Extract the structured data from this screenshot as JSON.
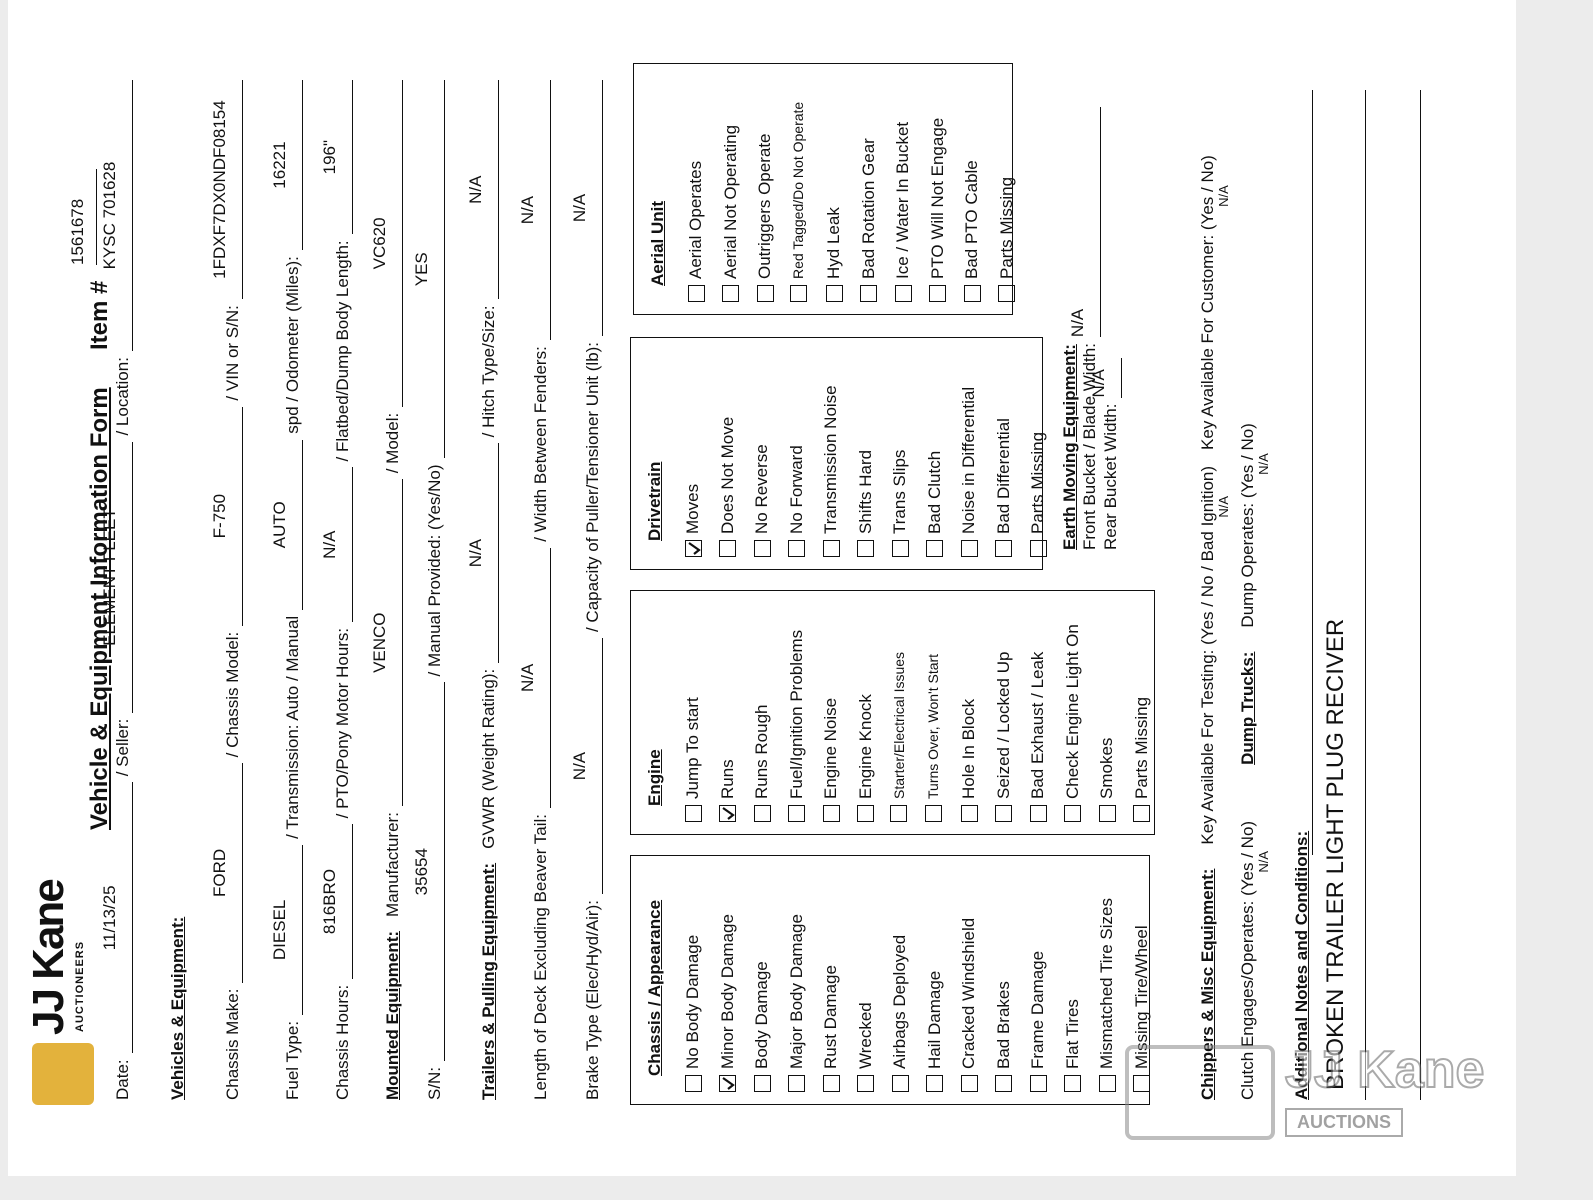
{
  "logo": {
    "name": "JJ Kane",
    "tagline": "AUCTIONEERS"
  },
  "header": {
    "title": "Vehicle & Equipment Information Form",
    "item_label": "Item #",
    "item_value": "1561678"
  },
  "rows": [
    [
      {
        "label": "Date:",
        "value": "11/13/25"
      },
      {
        "label": "/ Seller:",
        "value": "ELEMENT FLEET"
      },
      {
        "label": "/ Location:",
        "value": "KYSC 701628"
      }
    ],
    [
      {
        "heading": "Vehicles & Equipment:"
      }
    ],
    [
      {
        "label": "Chassis Make:",
        "value": "FORD"
      },
      {
        "label": "/ Chassis Model:",
        "value": "F-750"
      },
      {
        "label": "/ VIN or S/N:",
        "value": "1FDXF7DX0NDF08154"
      }
    ],
    [
      {
        "label": "Fuel Type:",
        "value": "DIESEL"
      },
      {
        "label": "/ Transmission: Auto / Manual",
        "value": "AUTO"
      },
      {
        "label": "spd / Odometer (Miles):",
        "value": "16221"
      }
    ],
    [
      {
        "label": "Chassis Hours:",
        "value": "816BRO"
      },
      {
        "label": "/ PTO/Pony Motor Hours:",
        "value": "N/A"
      },
      {
        "label": "/ Flatbed/Dump Body Length:",
        "value": "196\""
      }
    ],
    [
      {
        "heading": "Mounted Equipment:"
      },
      {
        "label": "Manufacturer:",
        "value": "VENCO"
      },
      {
        "label": "/ Model:",
        "value": "VC620"
      }
    ],
    [
      {
        "label": "S/N:",
        "value": "35654"
      },
      {
        "label": "/ Manual Provided: (Yes/No)",
        "value": "YES"
      }
    ],
    [
      {
        "heading": "Trailers & Pulling Equipment:"
      },
      {
        "label": "GVWR (Weight Rating):",
        "value": "N/A"
      },
      {
        "label": "/ Hitch Type/Size:",
        "value": "N/A"
      }
    ],
    [
      {
        "label": "Length of Deck Excluding Beaver Tail:",
        "value": "N/A"
      },
      {
        "label": "/ Width Between Fenders:",
        "value": "N/A"
      }
    ],
    [
      {
        "label": "Brake Type (Elec/Hyd/Air):",
        "value": "N/A"
      },
      {
        "label": "/ Capacity of Puller/Tensioner Unit (lb):",
        "value": "N/A"
      }
    ]
  ],
  "checklists": [
    {
      "title": "Chassis / Appearance",
      "items": [
        {
          "label": "No Body Damage",
          "checked": false
        },
        {
          "label": "Minor Body Damage",
          "checked": true
        },
        {
          "label": "Body Damage",
          "checked": false
        },
        {
          "label": "Major Body Damage",
          "checked": false
        },
        {
          "label": "Rust Damage",
          "checked": false
        },
        {
          "label": "Wrecked",
          "checked": false
        },
        {
          "label": "Airbags Deployed",
          "checked": false
        },
        {
          "label": "Hail Damage",
          "checked": false
        },
        {
          "label": "Cracked Windshield",
          "checked": false
        },
        {
          "label": "Bad Brakes",
          "checked": false
        },
        {
          "label": "Frame Damage",
          "checked": false
        },
        {
          "label": "Flat Tires",
          "checked": false
        },
        {
          "label": "Mismatched Tire Sizes",
          "checked": false
        },
        {
          "label": "Missing Tire/Wheel",
          "checked": false
        }
      ]
    },
    {
      "title": "Engine",
      "items": [
        {
          "label": "Jump To start",
          "checked": false
        },
        {
          "label": "Runs",
          "checked": true
        },
        {
          "label": "Runs Rough",
          "checked": false
        },
        {
          "label": "Fuel/Ignition Problems",
          "checked": false
        },
        {
          "label": "Engine Noise",
          "checked": false
        },
        {
          "label": "Engine Knock",
          "checked": false
        },
        {
          "label": "Starter/Electrical Issues",
          "checked": false
        },
        {
          "label": "Turns Over, Won't Start",
          "checked": false
        },
        {
          "label": "Hole In Block",
          "checked": false
        },
        {
          "label": "Seized / Locked Up",
          "checked": false
        },
        {
          "label": "Bad Exhaust / Leak",
          "checked": false
        },
        {
          "label": "Check Engine Light On",
          "checked": false
        },
        {
          "label": "Smokes",
          "checked": false
        },
        {
          "label": "Parts Missing",
          "checked": false
        }
      ]
    },
    {
      "title": "Drivetrain",
      "items": [
        {
          "label": "Moves",
          "checked": true
        },
        {
          "label": "Does Not Move",
          "checked": false
        },
        {
          "label": "No Reverse",
          "checked": false
        },
        {
          "label": "No Forward",
          "checked": false
        },
        {
          "label": "Transmission Noise",
          "checked": false
        },
        {
          "label": "Shifts Hard",
          "checked": false
        },
        {
          "label": "Trans Slips",
          "checked": false
        },
        {
          "label": "Bad Clutch",
          "checked": false
        },
        {
          "label": "Noise in Differential",
          "checked": false
        },
        {
          "label": "Bad Differential",
          "checked": false
        },
        {
          "label": "Parts Missing",
          "checked": false
        }
      ]
    },
    {
      "title": "Aerial Unit",
      "items": [
        {
          "label": "Aerial Operates",
          "checked": false
        },
        {
          "label": "Aerial Not Operating",
          "checked": false
        },
        {
          "label": "Outriggers Operate",
          "checked": false
        },
        {
          "label": "Red Tagged/Do Not Operate",
          "checked": false
        },
        {
          "label": "Hyd Leak",
          "checked": false
        },
        {
          "label": "Bad Rotation Gear",
          "checked": false
        },
        {
          "label": "Ice / Water In Bucket",
          "checked": false
        },
        {
          "label": "PTO Will Not Engage",
          "checked": false
        },
        {
          "label": "Bad PTO Cable",
          "checked": false
        },
        {
          "label": "Parts Missing",
          "checked": false
        }
      ]
    }
  ],
  "earth_moving": {
    "heading": "Earth Moving Equipment:",
    "fields": [
      {
        "label": "Front Bucket / Blade Width:",
        "value": "N/A"
      },
      {
        "label": "Rear Bucket Width:",
        "value": "N/A"
      }
    ]
  },
  "misc": [
    [
      {
        "heading": "Chippers & Misc Equipment:"
      },
      {
        "label": "Key Available For Testing: (Yes / No / Bad Ignition)",
        "value": "N/A"
      },
      {
        "label": "Key Available For Customer: (Yes / No)",
        "value": "N/A"
      }
    ],
    [
      {
        "label": "Clutch Engages/Operates: (Yes / No)",
        "value": "N/A"
      },
      {
        "heading": "Dump Trucks:"
      },
      {
        "label": "Dump Operates: (Yes / No)",
        "value": "N/A"
      }
    ]
  ],
  "notes": {
    "heading": "Additional Notes and Conditions:",
    "text": "BROKEN TRAILER LIGHT PLUG RECIVER"
  },
  "watermark": {
    "name": "JJ Kane",
    "tagline": "AUCTIONS"
  }
}
